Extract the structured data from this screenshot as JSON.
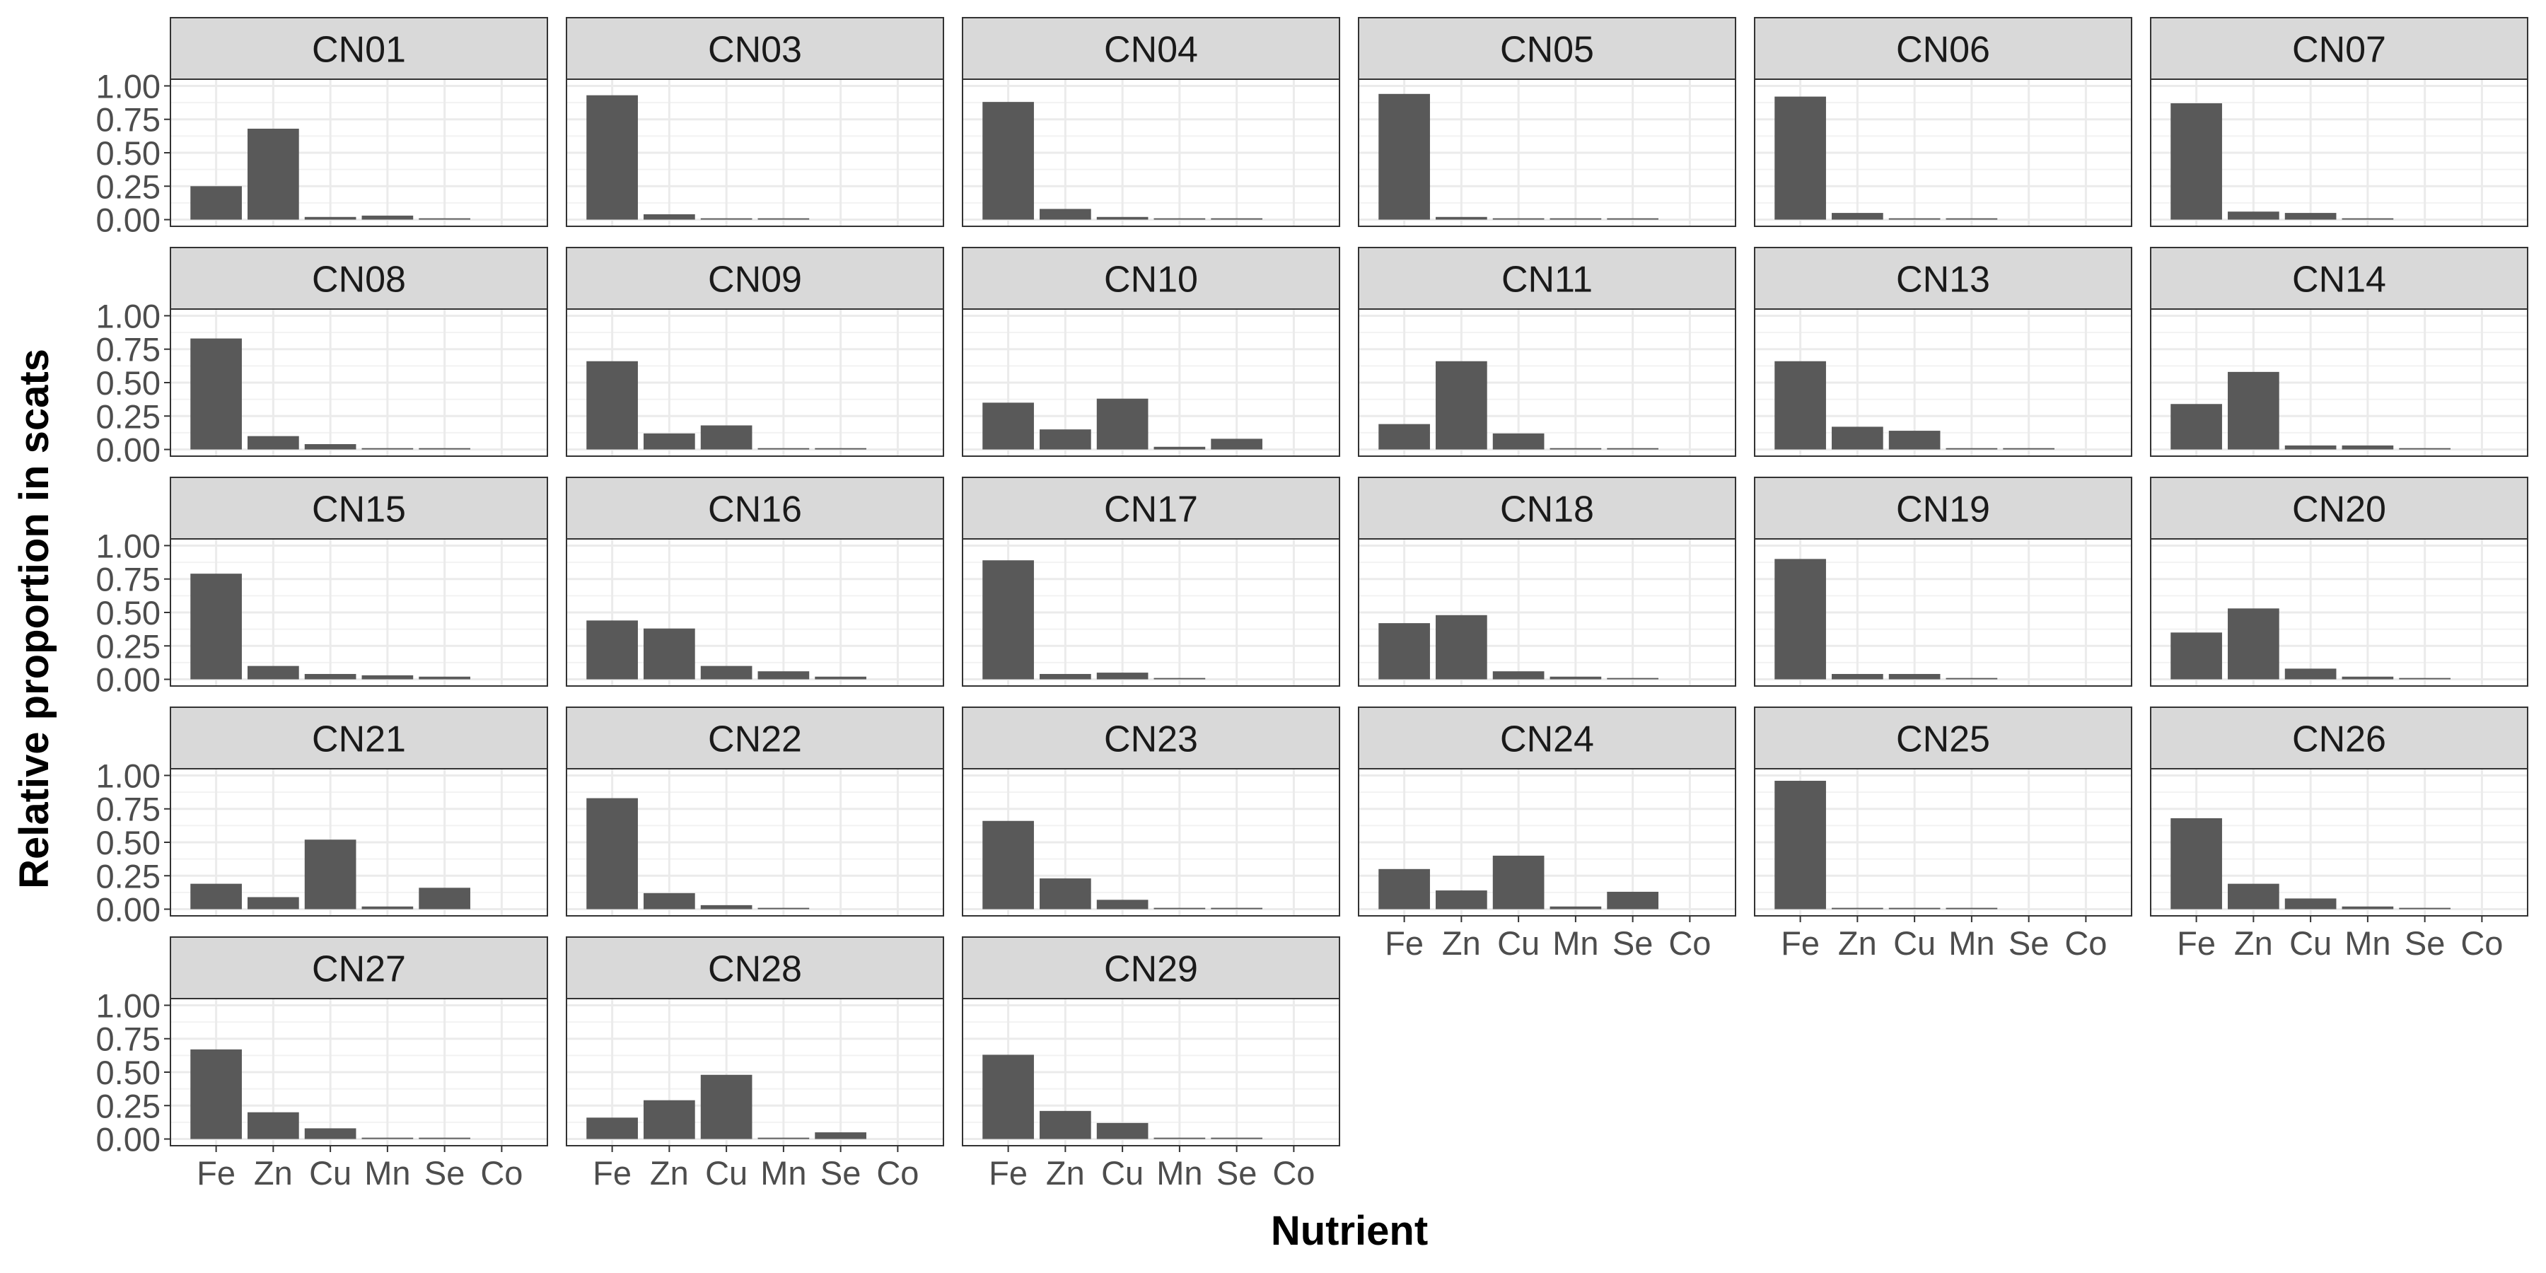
{
  "chart_data": {
    "type": "bar",
    "facet_layout": "wrap",
    "xlabel": "Nutrient",
    "ylabel": "Relative proportion in scats",
    "categories": [
      "Fe",
      "Zn",
      "Cu",
      "Mn",
      "Se",
      "Co"
    ],
    "ylim": [
      0,
      1
    ],
    "yticks": [
      "0.00",
      "0.25",
      "0.50",
      "0.75",
      "1.00"
    ],
    "grid": true,
    "bar_color": "#595959",
    "strip_color": "#d9d9d9",
    "panels": [
      {
        "name": "CN01",
        "values": [
          0.25,
          0.68,
          0.02,
          0.03,
          0.01,
          0.0
        ]
      },
      {
        "name": "CN03",
        "values": [
          0.93,
          0.04,
          0.01,
          0.01,
          0.0,
          0.0
        ]
      },
      {
        "name": "CN04",
        "values": [
          0.88,
          0.08,
          0.02,
          0.01,
          0.01,
          0.0
        ]
      },
      {
        "name": "CN05",
        "values": [
          0.94,
          0.02,
          0.01,
          0.01,
          0.01,
          0.0
        ]
      },
      {
        "name": "CN06",
        "values": [
          0.92,
          0.05,
          0.01,
          0.01,
          0.0,
          0.0
        ]
      },
      {
        "name": "CN07",
        "values": [
          0.87,
          0.06,
          0.05,
          0.01,
          0.0,
          0.0
        ]
      },
      {
        "name": "CN08",
        "values": [
          0.83,
          0.1,
          0.04,
          0.01,
          0.01,
          0.0
        ]
      },
      {
        "name": "CN09",
        "values": [
          0.66,
          0.12,
          0.18,
          0.01,
          0.01,
          0.0
        ]
      },
      {
        "name": "CN10",
        "values": [
          0.35,
          0.15,
          0.38,
          0.02,
          0.08,
          0.0
        ]
      },
      {
        "name": "CN11",
        "values": [
          0.19,
          0.66,
          0.12,
          0.01,
          0.01,
          0.0
        ]
      },
      {
        "name": "CN13",
        "values": [
          0.66,
          0.17,
          0.14,
          0.01,
          0.01,
          0.0
        ]
      },
      {
        "name": "CN14",
        "values": [
          0.34,
          0.58,
          0.03,
          0.03,
          0.01,
          0.0
        ]
      },
      {
        "name": "CN15",
        "values": [
          0.79,
          0.1,
          0.04,
          0.03,
          0.02,
          0.0
        ]
      },
      {
        "name": "CN16",
        "values": [
          0.44,
          0.38,
          0.1,
          0.06,
          0.02,
          0.0
        ]
      },
      {
        "name": "CN17",
        "values": [
          0.89,
          0.04,
          0.05,
          0.01,
          0.0,
          0.0
        ]
      },
      {
        "name": "CN18",
        "values": [
          0.42,
          0.48,
          0.06,
          0.02,
          0.01,
          0.0
        ]
      },
      {
        "name": "CN19",
        "values": [
          0.9,
          0.04,
          0.04,
          0.01,
          0.0,
          0.0
        ]
      },
      {
        "name": "CN20",
        "values": [
          0.35,
          0.53,
          0.08,
          0.02,
          0.01,
          0.0
        ]
      },
      {
        "name": "CN21",
        "values": [
          0.19,
          0.09,
          0.52,
          0.02,
          0.16,
          0.0
        ]
      },
      {
        "name": "CN22",
        "values": [
          0.83,
          0.12,
          0.03,
          0.01,
          0.0,
          0.0
        ]
      },
      {
        "name": "CN23",
        "values": [
          0.66,
          0.23,
          0.07,
          0.01,
          0.01,
          0.0
        ]
      },
      {
        "name": "CN24",
        "values": [
          0.3,
          0.14,
          0.4,
          0.02,
          0.13,
          0.0
        ]
      },
      {
        "name": "CN25",
        "values": [
          0.96,
          0.01,
          0.01,
          0.01,
          0.0,
          0.0
        ]
      },
      {
        "name": "CN26",
        "values": [
          0.68,
          0.19,
          0.08,
          0.02,
          0.01,
          0.0
        ]
      },
      {
        "name": "CN27",
        "values": [
          0.67,
          0.2,
          0.08,
          0.01,
          0.01,
          0.0
        ]
      },
      {
        "name": "CN28",
        "values": [
          0.16,
          0.29,
          0.48,
          0.01,
          0.05,
          0.0
        ]
      },
      {
        "name": "CN29",
        "values": [
          0.63,
          0.21,
          0.12,
          0.01,
          0.01,
          0.0
        ]
      }
    ]
  }
}
